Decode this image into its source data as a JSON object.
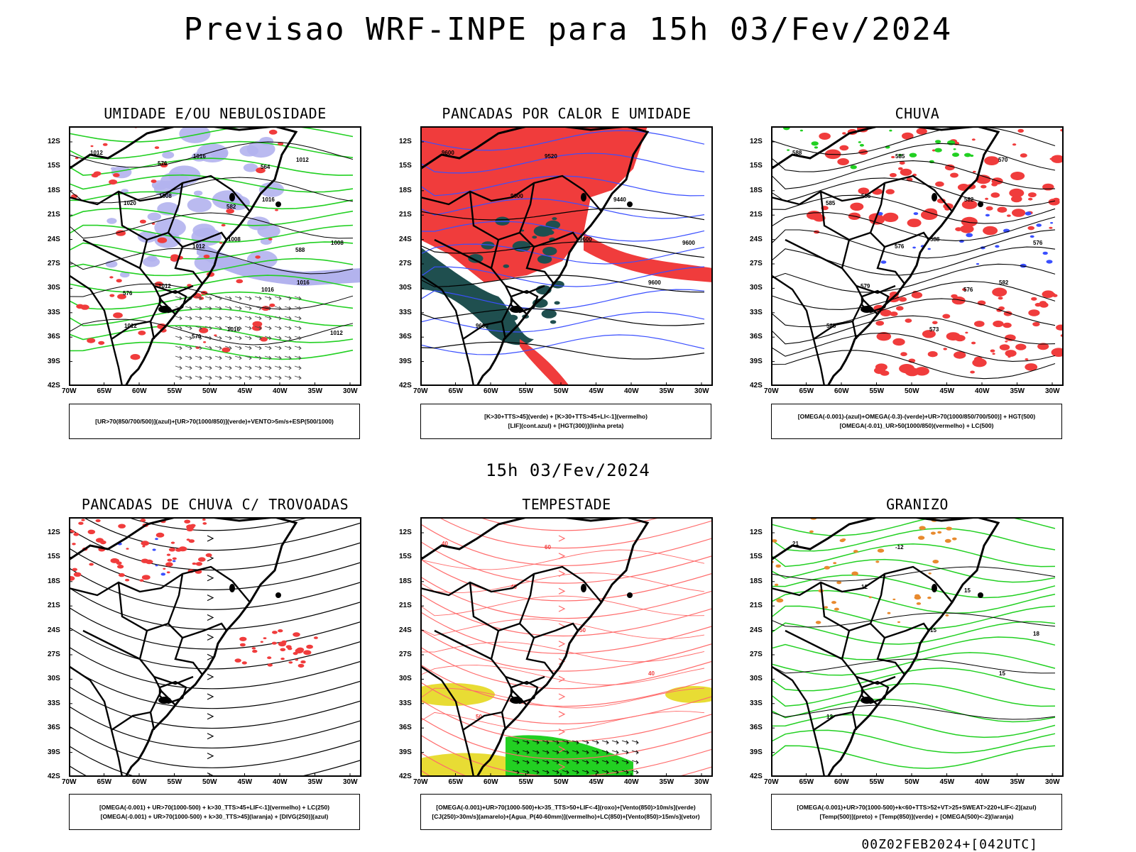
{
  "title": "Previsao WRF-INPE  para 15h 03/Fev/2024",
  "subtitle": "15h 03/Fev/2024",
  "run_stamp": "00Z02FEB2024+[042UTC]",
  "lat_ticks": [
    "12S",
    "15S",
    "18S",
    "21S",
    "24S",
    "27S",
    "30S",
    "33S",
    "36S",
    "39S",
    "42S"
  ],
  "lon_ticks": [
    "70W",
    "65W",
    "60W",
    "55W",
    "50W",
    "45W",
    "40W",
    "35W",
    "30W"
  ],
  "colors": {
    "red": "#f03c3c",
    "lightred": "#ff6b6b",
    "blue": "#3a4fff",
    "green": "#22d022",
    "lavender": "#b3b3ee",
    "teal": "#1f4f4f",
    "yellow": "#e8dc34",
    "orange": "#e88a2e"
  },
  "panels": [
    {
      "title": "UMIDADE E/OU NEBULOSIDADE",
      "legend": [
        "[UR>70(850/700/500)](azul)+[UR>70(1000/850)](verde)+VENTO>5m/s+ESP(500/1000)"
      ],
      "labels": [
        "1012",
        "1008",
        "1008",
        "1016",
        "1012",
        "1016",
        "1016",
        "1008",
        "1012",
        "1016",
        "1012",
        "1020",
        "1012",
        "1016",
        "1012",
        "576",
        "582",
        "588",
        "576",
        "570",
        "564"
      ]
    },
    {
      "title": "PANCADAS POR CALOR E UMIDADE",
      "legend": [
        "[K>30+TTS>45](verde) + [K>30+TTS>45+LI<-1](vermelho)",
        "[LIF](cont.azul) + [HGT(300)](linha preta)"
      ],
      "labels": [
        "9600",
        "9600",
        "9600",
        "9600",
        "9600",
        "9520",
        "9440",
        "9600"
      ]
    },
    {
      "title": "CHUVA",
      "legend": [
        "[OMEGA(-0.001)-(azul)+OMEGA(-0.3)-(verde)+UR>70(1000/850/700/500)] + HGT(500)",
        "[OMEGA(-0.01)_UR>50(1000/850)(vermelho) + LC(500)"
      ],
      "labels": [
        "588",
        "585",
        "588",
        "582",
        "585",
        "585",
        "582",
        "576",
        "579",
        "573",
        "570",
        "585",
        "576",
        "576"
      ]
    },
    {
      "title": "PANCADAS DE CHUVA C/ TROVOADAS",
      "legend": [
        "[OMEGA(-0.001) + UR>70(1000-500) + k>30_TTS>45+LIF<-1](vermelho) + LC(250)",
        "[OMEGA(-0.001) + UR>70(1000-500) + k>30_TTS>45](laranja) + [DIVG(250)](azul)"
      ],
      "labels": []
    },
    {
      "title": "TEMPESTADE",
      "legend": [
        "[OMEGA(-0.001)+UR>70(1000-500)+k>35_TTS>50+LIF<-4](roxo)+[Vento(850)>10m/s](verde)",
        "[CJ(250)>30m/s](amarelo)+[Agua_P(40-60mm)](vermelho)+LC(850)+[Vento(850)>15m/s](vetor)"
      ],
      "labels": [
        "40",
        "40",
        "50",
        "40",
        "50",
        "60"
      ]
    },
    {
      "title": "GRANIZO",
      "legend": [
        "[OMEGA(-0.001)+UR>70(1000-500)+k<60+TTS>52+VT>25+SWEAT>220+LIF<-2](azul)",
        "[Temp(500)](preto) + [Temp(850)](verde) + [OMEGA(500)<-2](laranja)"
      ],
      "labels": [
        "21",
        "12",
        "15",
        "15",
        "12",
        "-12",
        "15",
        "18"
      ]
    }
  ]
}
